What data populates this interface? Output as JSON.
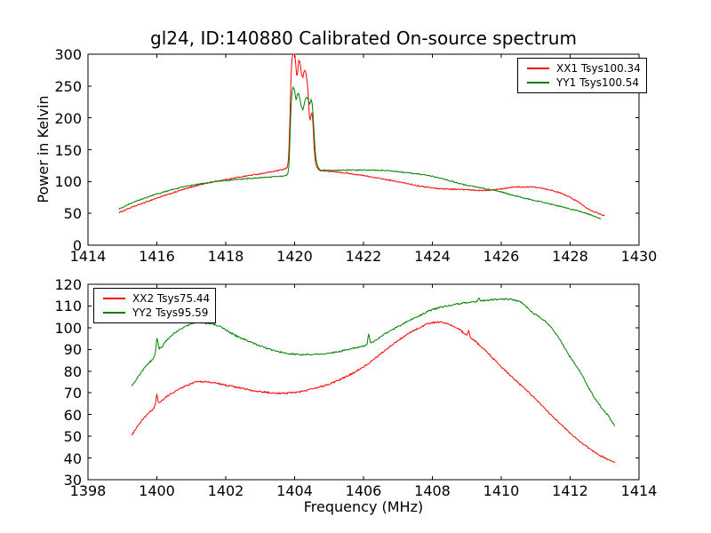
{
  "figure": {
    "background": "#ffffff",
    "frame_color": "#000000"
  },
  "chart_data": [
    {
      "type": "line",
      "title": "gl24, ID:140880 Calibrated On-source spectrum",
      "xlabel": "",
      "ylabel": "Power in Kelvin",
      "xlim": [
        1414,
        1430
      ],
      "ylim": [
        0,
        300
      ],
      "xticks": [
        1414,
        1416,
        1418,
        1420,
        1422,
        1424,
        1426,
        1428,
        1430
      ],
      "yticks": [
        0,
        50,
        100,
        150,
        200,
        250,
        300
      ],
      "grid": false,
      "legend_position": "upper right",
      "series": [
        {
          "name": "XX1",
          "label": "XX1 Tsys100.34",
          "color": "#ff0000",
          "points": [
            [
              1414.9,
              51
            ],
            [
              1415.2,
              58
            ],
            [
              1415.6,
              66
            ],
            [
              1416.0,
              74
            ],
            [
              1416.4,
              81
            ],
            [
              1416.8,
              88
            ],
            [
              1417.2,
              94
            ],
            [
              1417.6,
              99
            ],
            [
              1418.0,
              103
            ],
            [
              1418.4,
              107
            ],
            [
              1418.8,
              110.5
            ],
            [
              1419.2,
              114
            ],
            [
              1419.5,
              117
            ],
            [
              1419.7,
              119.5
            ],
            [
              1419.78,
              122
            ],
            [
              1419.82,
              135
            ],
            [
              1419.85,
              175
            ],
            [
              1419.88,
              230
            ],
            [
              1419.9,
              270
            ],
            [
              1419.93,
              295
            ],
            [
              1419.96,
              300
            ],
            [
              1420.0,
              300
            ],
            [
              1420.03,
              287
            ],
            [
              1420.06,
              266
            ],
            [
              1420.09,
              272
            ],
            [
              1420.12,
              290
            ],
            [
              1420.15,
              288
            ],
            [
              1420.18,
              277
            ],
            [
              1420.21,
              266
            ],
            [
              1420.24,
              264
            ],
            [
              1420.27,
              272
            ],
            [
              1420.3,
              274
            ],
            [
              1420.33,
              270
            ],
            [
              1420.36,
              258
            ],
            [
              1420.39,
              240
            ],
            [
              1420.42,
              210
            ],
            [
              1420.45,
              196
            ],
            [
              1420.48,
              205
            ],
            [
              1420.5,
              207
            ],
            [
              1420.53,
              193
            ],
            [
              1420.56,
              160
            ],
            [
              1420.6,
              133
            ],
            [
              1420.65,
              122
            ],
            [
              1420.72,
              118
            ],
            [
              1420.9,
              116.5
            ],
            [
              1421.3,
              114.5
            ],
            [
              1421.8,
              111
            ],
            [
              1422.3,
              106.5
            ],
            [
              1422.8,
              101.5
            ],
            [
              1423.3,
              96.5
            ],
            [
              1423.8,
              91.5
            ],
            [
              1424.3,
              88.5
            ],
            [
              1424.85,
              87.5
            ],
            [
              1425.4,
              86
            ],
            [
              1426.0,
              88.5
            ],
            [
              1426.4,
              91.5
            ],
            [
              1426.9,
              91.5
            ],
            [
              1427.4,
              87
            ],
            [
              1427.8,
              80
            ],
            [
              1428.2,
              69
            ],
            [
              1428.6,
              55
            ],
            [
              1429.0,
              46.5
            ]
          ]
        },
        {
          "name": "YY1",
          "label": "YY1 Tsys100.54",
          "color": "#008000",
          "points": [
            [
              1414.9,
              57
            ],
            [
              1415.3,
              67
            ],
            [
              1415.7,
              75
            ],
            [
              1416.1,
              82
            ],
            [
              1416.5,
              88
            ],
            [
              1417.0,
              94
            ],
            [
              1417.4,
              97.5
            ],
            [
              1417.8,
              100.5
            ],
            [
              1418.2,
              102.5
            ],
            [
              1418.6,
              104.5
            ],
            [
              1419.0,
              106
            ],
            [
              1419.4,
              107.5
            ],
            [
              1419.7,
              109
            ],
            [
              1419.8,
              112
            ],
            [
              1419.84,
              130
            ],
            [
              1419.87,
              175
            ],
            [
              1419.9,
              222
            ],
            [
              1419.93,
              242
            ],
            [
              1419.96,
              248
            ],
            [
              1420.0,
              243
            ],
            [
              1420.04,
              228
            ],
            [
              1420.07,
              233
            ],
            [
              1420.1,
              239
            ],
            [
              1420.13,
              236
            ],
            [
              1420.16,
              228
            ],
            [
              1420.2,
              217
            ],
            [
              1420.24,
              213
            ],
            [
              1420.28,
              222
            ],
            [
              1420.32,
              230
            ],
            [
              1420.36,
              232
            ],
            [
              1420.4,
              228
            ],
            [
              1420.44,
              222
            ],
            [
              1420.48,
              228
            ],
            [
              1420.51,
              222
            ],
            [
              1420.54,
              200
            ],
            [
              1420.57,
              172
            ],
            [
              1420.6,
              148
            ],
            [
              1420.64,
              130
            ],
            [
              1420.7,
              121
            ],
            [
              1420.78,
              118
            ],
            [
              1421.0,
              117.5
            ],
            [
              1421.5,
              118
            ],
            [
              1422.0,
              118
            ],
            [
              1422.5,
              117.5
            ],
            [
              1423.0,
              115.5
            ],
            [
              1423.5,
              112.5
            ],
            [
              1424.0,
              108
            ],
            [
              1424.4,
              103
            ],
            [
              1424.85,
              96
            ],
            [
              1425.5,
              89
            ],
            [
              1425.9,
              85
            ],
            [
              1426.3,
              79
            ],
            [
              1426.9,
              71
            ],
            [
              1427.4,
              65
            ],
            [
              1428.0,
              57
            ],
            [
              1428.5,
              49.5
            ],
            [
              1428.9,
              41.5
            ]
          ]
        }
      ]
    },
    {
      "type": "line",
      "title": "",
      "xlabel": "Frequency (MHz)",
      "ylabel": "",
      "xlim": [
        1398,
        1414
      ],
      "ylim": [
        30,
        120
      ],
      "xticks": [
        1398,
        1400,
        1402,
        1404,
        1406,
        1408,
        1410,
        1412,
        1414
      ],
      "yticks": [
        30,
        40,
        50,
        60,
        70,
        80,
        90,
        100,
        110,
        120
      ],
      "grid": false,
      "legend_position": "upper left",
      "series": [
        {
          "name": "XX2",
          "label": "XX2 Tsys75.44",
          "color": "#ff0000",
          "points": [
            [
              1399.27,
              50.5
            ],
            [
              1399.5,
              56
            ],
            [
              1399.75,
              60.5
            ],
            [
              1399.95,
              64.3
            ],
            [
              1400.0,
              69.5
            ],
            [
              1400.05,
              65.5
            ],
            [
              1400.15,
              66.5
            ],
            [
              1400.35,
              69
            ],
            [
              1400.6,
              71.3
            ],
            [
              1400.9,
              73.5
            ],
            [
              1401.2,
              75.2
            ],
            [
              1401.6,
              74.8
            ],
            [
              1402.0,
              73.5
            ],
            [
              1402.4,
              72.4
            ],
            [
              1402.9,
              70.7
            ],
            [
              1403.3,
              70.1
            ],
            [
              1403.6,
              69.8
            ],
            [
              1404.0,
              70.2
            ],
            [
              1404.5,
              71.7
            ],
            [
              1405.0,
              74
            ],
            [
              1405.5,
              77.5
            ],
            [
              1406.0,
              82
            ],
            [
              1406.5,
              88
            ],
            [
              1407.0,
              94
            ],
            [
              1407.5,
              99
            ],
            [
              1408.0,
              102.3
            ],
            [
              1408.2,
              102.6
            ],
            [
              1408.5,
              101.5
            ],
            [
              1408.8,
              99
            ],
            [
              1409.0,
              96.8
            ],
            [
              1409.05,
              98.3
            ],
            [
              1409.1,
              96
            ],
            [
              1409.3,
              93
            ],
            [
              1409.6,
              88.5
            ],
            [
              1410.0,
              82
            ],
            [
              1410.4,
              76
            ],
            [
              1410.9,
              68.6
            ],
            [
              1411.4,
              60.5
            ],
            [
              1412.0,
              51.5
            ],
            [
              1412.5,
              45
            ],
            [
              1413.0,
              40
            ],
            [
              1413.3,
              37.9
            ]
          ]
        },
        {
          "name": "YY2",
          "label": "YY2 Tsys95.59",
          "color": "#008000",
          "points": [
            [
              1399.27,
              73
            ],
            [
              1399.5,
              78.5
            ],
            [
              1399.75,
              83.5
            ],
            [
              1399.95,
              87.5
            ],
            [
              1400.0,
              95
            ],
            [
              1400.07,
              90.5
            ],
            [
              1400.3,
              94.5
            ],
            [
              1400.6,
              98.5
            ],
            [
              1400.9,
              101
            ],
            [
              1401.15,
              102.4
            ],
            [
              1401.5,
              102
            ],
            [
              1401.8,
              100.8
            ],
            [
              1402.1,
              98
            ],
            [
              1402.4,
              95.5
            ],
            [
              1402.7,
              93.5
            ],
            [
              1403.0,
              91.5
            ],
            [
              1403.4,
              89.5
            ],
            [
              1403.8,
              88.2
            ],
            [
              1404.2,
              87.6
            ],
            [
              1404.7,
              87.8
            ],
            [
              1405.2,
              88.8
            ],
            [
              1405.7,
              90.5
            ],
            [
              1406.1,
              92.5
            ],
            [
              1406.15,
              97
            ],
            [
              1406.2,
              93.2
            ],
            [
              1406.6,
              97
            ],
            [
              1407.0,
              100.5
            ],
            [
              1407.5,
              104.5
            ],
            [
              1408.0,
              108.3
            ],
            [
              1408.5,
              110.3
            ],
            [
              1409.0,
              111.6
            ],
            [
              1409.3,
              112.2
            ],
            [
              1409.35,
              113.8
            ],
            [
              1409.4,
              112.4
            ],
            [
              1409.8,
              112.9
            ],
            [
              1410.1,
              113.2
            ],
            [
              1410.5,
              112.3
            ],
            [
              1410.9,
              107
            ],
            [
              1411.2,
              104
            ],
            [
              1411.45,
              100
            ],
            [
              1411.7,
              94.5
            ],
            [
              1412.0,
              86.5
            ],
            [
              1412.3,
              79.5
            ],
            [
              1412.55,
              72
            ],
            [
              1412.8,
              65.5
            ],
            [
              1413.1,
              59.5
            ],
            [
              1413.3,
              54.7
            ]
          ]
        }
      ]
    }
  ]
}
